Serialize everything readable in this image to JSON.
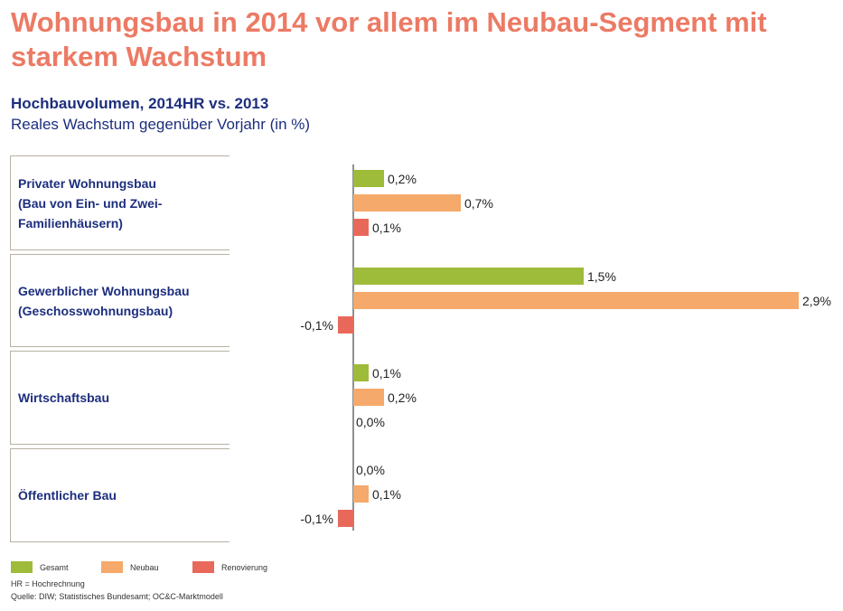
{
  "header": {
    "title": "Wohnungsbau in 2014 vor allem im Neubau-Segment mit starkem Wachstum",
    "subtitle": "Hochbauvolumen, 2014HR vs. 2013",
    "subtitle2": "Reales Wachstum gegenüber Vorjahr (in %)"
  },
  "categories": [
    {
      "line1": "Privater Wohnungsbau",
      "line2": "(Bau von Ein- und Zwei-",
      "line3": "Familienhäusern)"
    },
    {
      "line1": "Gewerblicher Wohnungsbau",
      "line2": "(Geschosswohnungsbau)",
      "line3": ""
    },
    {
      "line1": "Wirtschaftsbau",
      "line2": "",
      "line3": ""
    },
    {
      "line1": "Öffentlicher Bau",
      "line2": "",
      "line3": ""
    }
  ],
  "legend": {
    "gesamt": "Gesamt",
    "neubau": "Neubau",
    "renovierung": "Renovierung"
  },
  "footnotes": {
    "hr": "HR = Hochrechnung",
    "source": "Quelle: DIW; Statistisches Bundesamt; OC&C-Marktmodell"
  },
  "colors": {
    "gesamt": "#9ebb3a",
    "neubau": "#f5a96a",
    "renovierung": "#e8695a",
    "title": "#ec7a64",
    "text_blue": "#1d2e7e"
  },
  "chart_data": {
    "type": "bar",
    "orientation": "horizontal",
    "categories": [
      "Privater Wohnungsbau",
      "Gewerblicher Wohnungsbau",
      "Wirtschaftsbau",
      "Öffentlicher Bau"
    ],
    "series": [
      {
        "name": "Gesamt",
        "values": [
          0.2,
          1.5,
          0.1,
          0.0
        ],
        "labels": [
          "0,2%",
          "1,5%",
          "0,1%",
          "0,0%"
        ]
      },
      {
        "name": "Neubau",
        "values": [
          0.7,
          2.9,
          0.2,
          0.1
        ],
        "labels": [
          "0,7%",
          "2,9%",
          "0,2%",
          "0,1%"
        ]
      },
      {
        "name": "Renovierung",
        "values": [
          0.1,
          -0.1,
          0.0,
          -0.1
        ],
        "labels": [
          "0,1%",
          "-0,1%",
          "0,0%",
          "-0,1%"
        ]
      }
    ],
    "unit": "%",
    "grid": false
  }
}
